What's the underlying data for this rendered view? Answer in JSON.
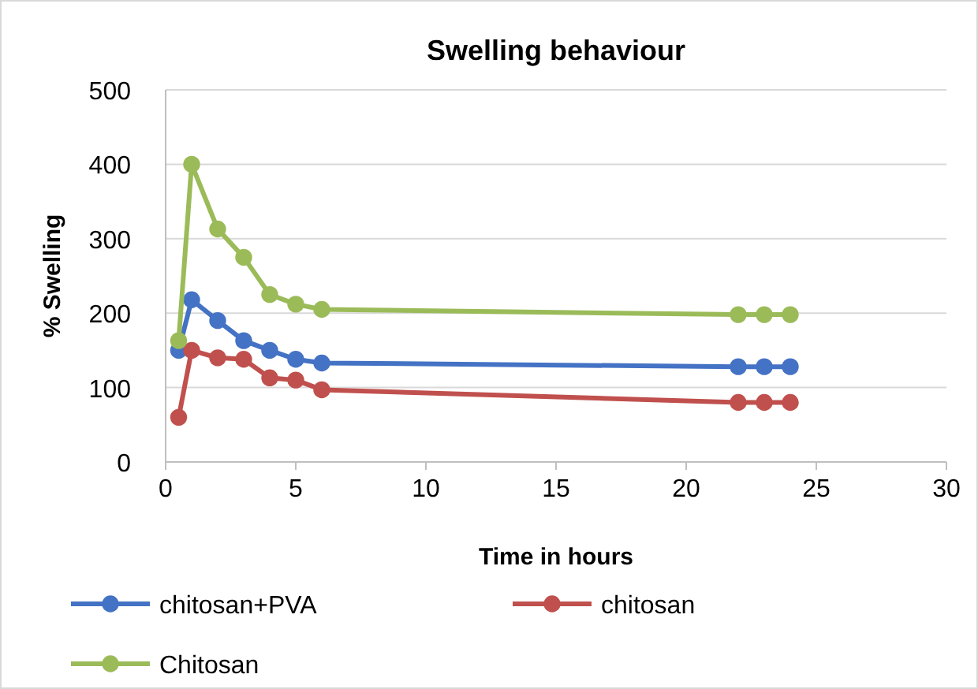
{
  "chart_data": {
    "type": "line",
    "title": "Swelling  behaviour",
    "xlabel": "Time in hours",
    "ylabel": "% Swelling",
    "xlim": [
      0,
      30
    ],
    "xticks": [
      0,
      5,
      10,
      15,
      20,
      25,
      30
    ],
    "ylim": [
      0,
      500
    ],
    "yticks": [
      0,
      100,
      200,
      300,
      400,
      500
    ],
    "grid": "y",
    "legend": "bottom",
    "marker": "circle",
    "series": [
      {
        "name": "chitosan+PVA",
        "color": "#4472c4",
        "x": [
          0.5,
          1,
          2,
          3,
          4,
          5,
          6,
          22,
          23,
          24
        ],
        "values": [
          150,
          218,
          190,
          163,
          150,
          138,
          133,
          128,
          128,
          128
        ]
      },
      {
        "name": "chitosan",
        "color": "#c0504d",
        "x": [
          0.5,
          1,
          2,
          3,
          4,
          5,
          6,
          22,
          23,
          24
        ],
        "values": [
          60,
          150,
          140,
          138,
          113,
          110,
          97,
          80,
          80,
          80
        ]
      },
      {
        "name": "Chitosan",
        "color": "#9bbb59",
        "x": [
          0.5,
          1,
          2,
          3,
          4,
          5,
          6,
          22,
          23,
          24
        ],
        "values": [
          163,
          400,
          313,
          275,
          225,
          212,
          205,
          198,
          198,
          198
        ]
      }
    ]
  }
}
